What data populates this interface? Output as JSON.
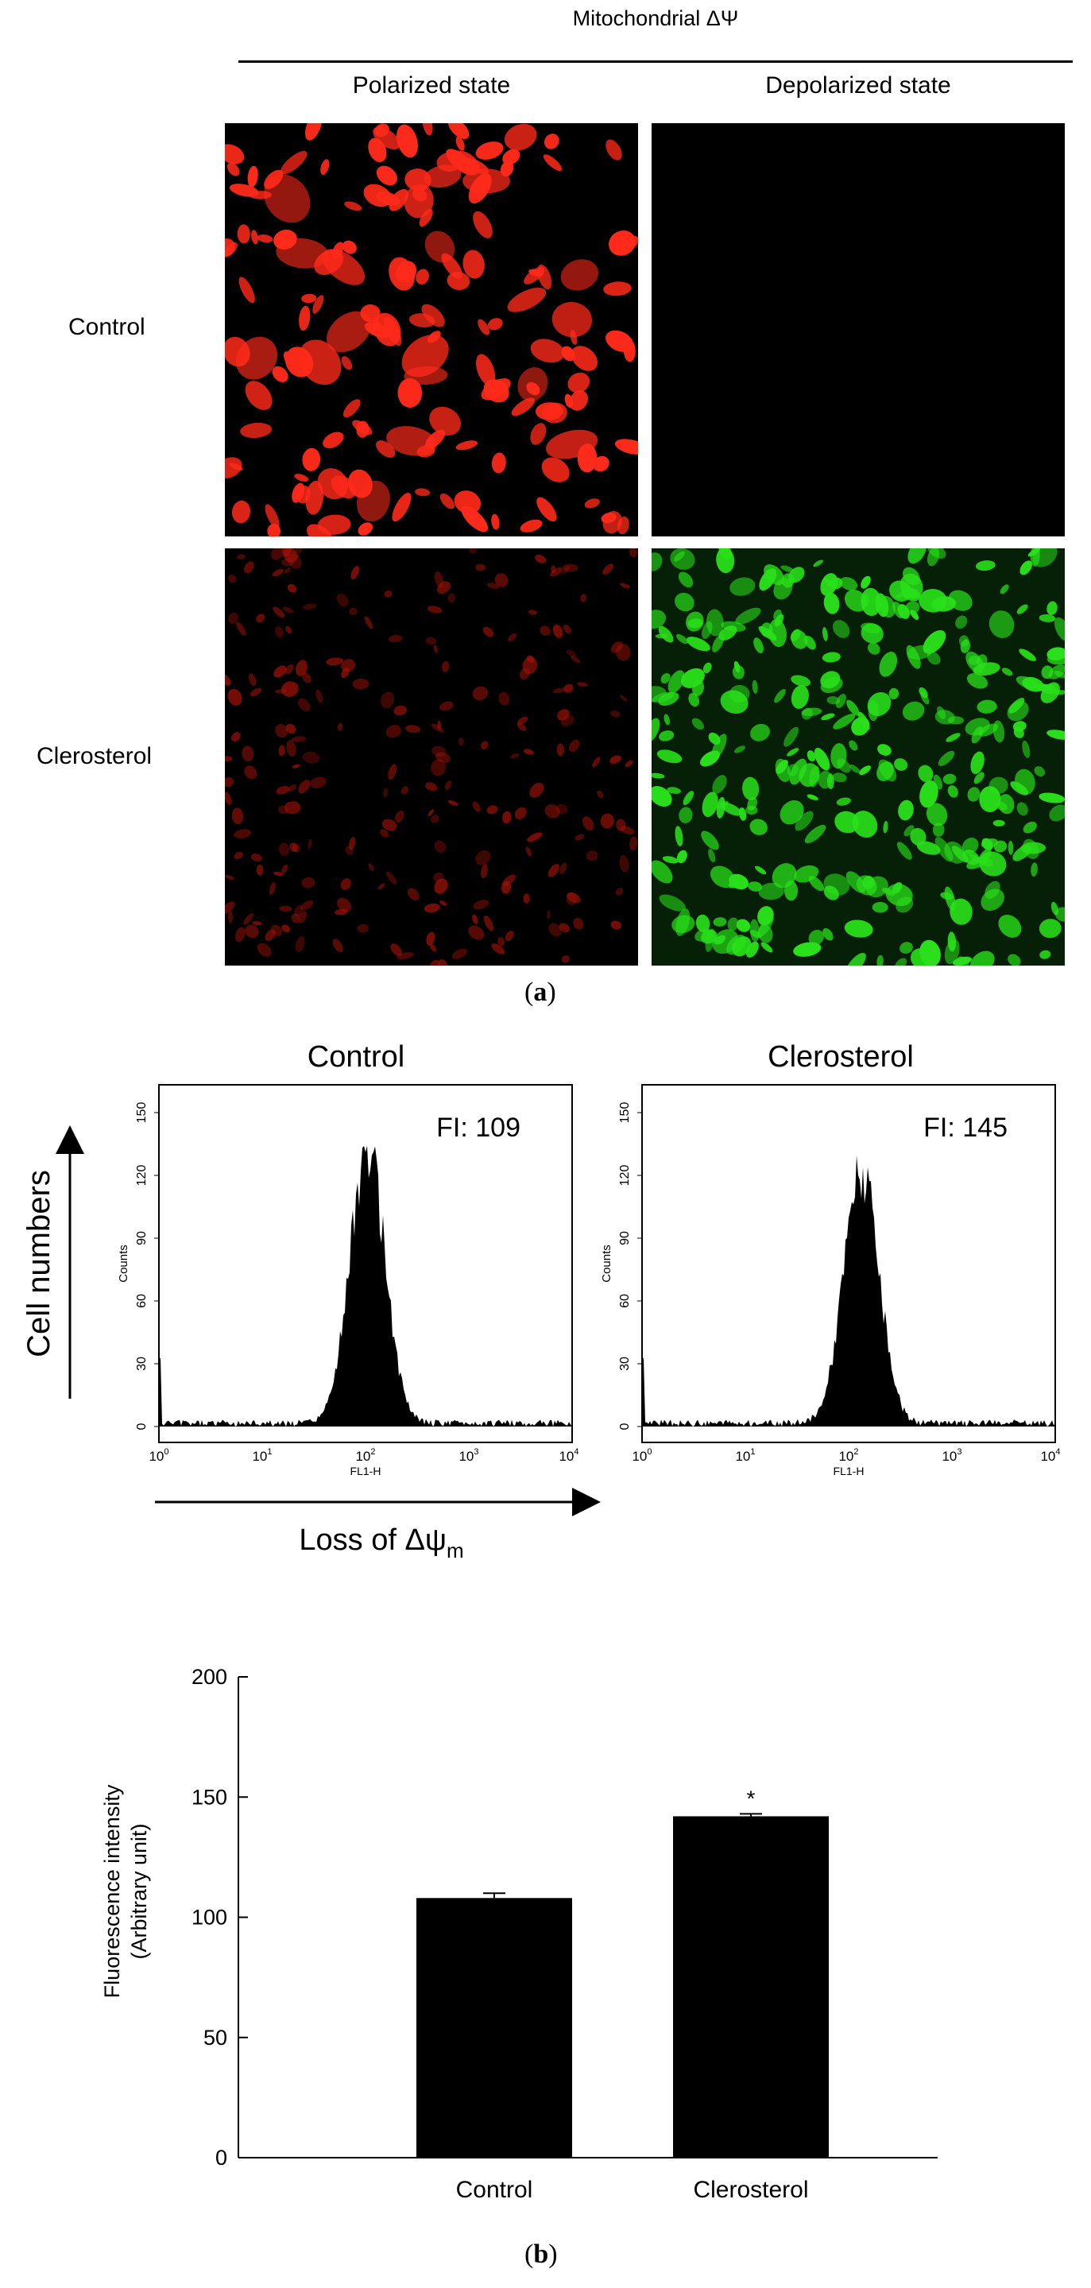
{
  "panel_a": {
    "header": "Mitochondrial ΔΨ",
    "col_labels": [
      "Polarized state",
      "Depolarized state"
    ],
    "row_labels": [
      "Control",
      "Clerosterol"
    ],
    "letter_open": "(",
    "letter": "a",
    "letter_close": ")",
    "colors": {
      "red": "#ff2a1a",
      "dim_red": "#9e1208",
      "green": "#29e01a"
    }
  },
  "panel_b": {
    "histograms": [
      {
        "title": "Control",
        "fi_label": "FI: 109",
        "peak_counts": 120
      },
      {
        "title": "Clerosterol",
        "fi_label": "FI: 145",
        "peak_counts": 110
      }
    ],
    "hist_axis": {
      "ylabel": "Counts",
      "xlabel": "FL1-H",
      "yticks": [
        "0",
        "30",
        "60",
        "90",
        "120",
        "150"
      ],
      "xticks": [
        {
          "base": "10",
          "exp": "0"
        },
        {
          "base": "10",
          "exp": "1"
        },
        {
          "base": "10",
          "exp": "2"
        },
        {
          "base": "10",
          "exp": "3"
        },
        {
          "base": "10",
          "exp": "4"
        }
      ]
    },
    "y_arrow_label": "Cell numbers",
    "x_arrow_label_main": "Loss of Δψ",
    "x_arrow_label_sub": "m",
    "letter_open": "(",
    "letter": "b",
    "letter_close": ")"
  },
  "chart_data": {
    "type": "bar",
    "categories": [
      "Control",
      "Clerosterol"
    ],
    "values": [
      108,
      142
    ],
    "errors": [
      2,
      1
    ],
    "significance": [
      "",
      "*"
    ],
    "ylabel_line1": "Fluorescence intensity",
    "ylabel_line2": "(Arbitrary unit)",
    "ylim": [
      0,
      200
    ],
    "yticks": [
      "0",
      "50",
      "100",
      "150",
      "200"
    ],
    "bar_color": "#000000"
  }
}
